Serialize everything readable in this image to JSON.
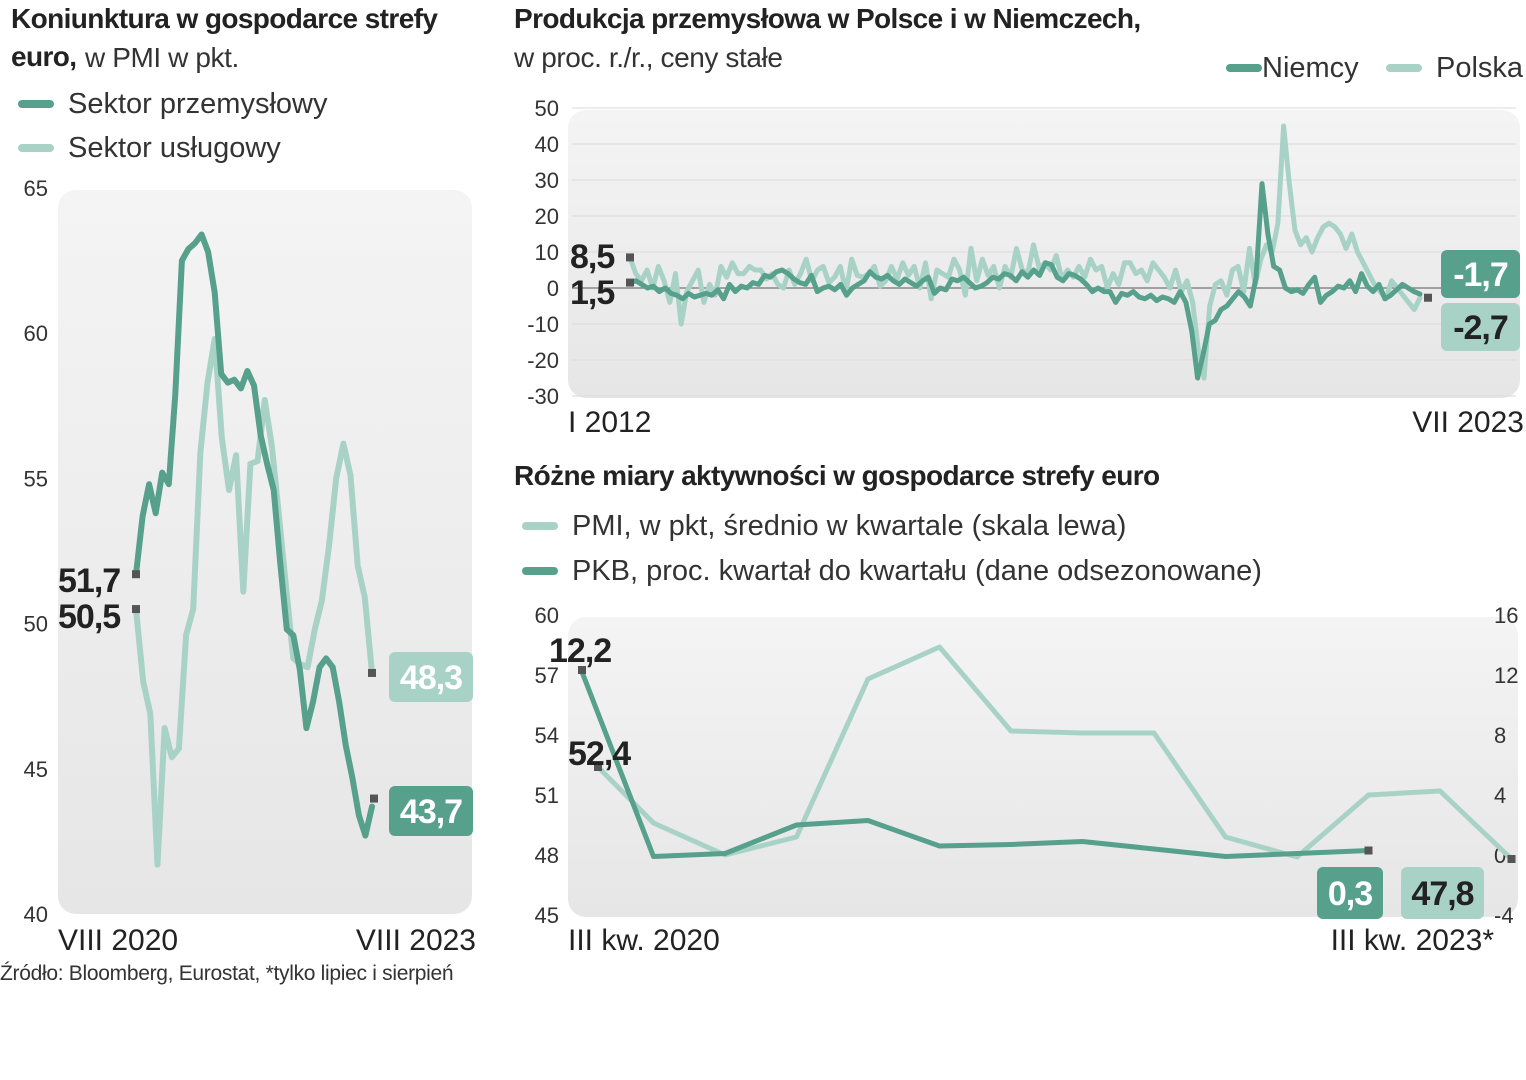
{
  "colors": {
    "dark": "#56a08c",
    "light": "#a9d2c6",
    "panel": "#e9e9e9",
    "marker": "#555555"
  },
  "chart_data": [
    {
      "type": "line",
      "title": "Koniunktura w gospodarce strefy euro,",
      "subtitle": "w PMI w pkt.",
      "legend": [
        "Sektor przemysłowy",
        "Sektor usługowy"
      ],
      "ylim": [
        40,
        65
      ],
      "yticks": [
        "65",
        "60",
        "55",
        "50",
        "45",
        "40"
      ],
      "xlabels": [
        "VIII 2020",
        "VIII 2023"
      ],
      "series": [
        {
          "name": "Sektor przemysłowy",
          "color": "dark",
          "values": [
            51.7,
            53.7,
            54.8,
            53.8,
            55.2,
            54.8,
            57.9,
            62.5,
            62.9,
            63.1,
            63.4,
            62.8,
            61.4,
            58.6,
            58.3,
            58.4,
            58.1,
            58.7,
            58.2,
            56.5,
            55.5,
            54.6,
            52.1,
            49.8,
            49.6,
            48.4,
            46.4,
            47.3,
            48.5,
            48.8,
            48.5,
            47.3,
            45.8,
            44.7,
            43.4,
            42.7,
            43.7
          ],
          "start_label": "51,7",
          "end_label": "43,7"
        },
        {
          "name": "Sektor usługowy",
          "color": "light",
          "values": [
            50.5,
            48.0,
            46.9,
            41.7,
            46.4,
            45.4,
            45.7,
            49.6,
            50.5,
            55.9,
            58.3,
            59.8,
            56.4,
            54.6,
            55.8,
            51.1,
            55.5,
            55.6,
            57.7,
            56.1,
            53.7,
            51.2,
            48.8,
            48.6,
            48.5,
            49.8,
            50.8,
            52.7,
            55.0,
            56.2,
            55.1,
            52.0,
            50.9,
            48.3
          ],
          "start_label": "50,5",
          "end_label": "48,3"
        }
      ]
    },
    {
      "type": "line",
      "title": "Produkcja przemysłowa w Polsce i w Niemczech,",
      "subtitle": "w proc. r./r., ceny stałe",
      "legend": [
        "Niemcy",
        "Polska"
      ],
      "ylim": [
        -30,
        50
      ],
      "yticks": [
        "50",
        "40",
        "30",
        "20",
        "10",
        "0",
        "-10",
        "-20",
        "-30"
      ],
      "xlabels": [
        "I 2012",
        "VII 2023"
      ],
      "series": [
        {
          "name": "Niemcy",
          "color": "dark",
          "values": [
            1.5,
            2.0,
            1.0,
            0.0,
            0.5,
            -1.0,
            0.0,
            -1.5,
            -2.0,
            -3.0,
            -1.5,
            -2.5,
            -2.0,
            -1.5,
            -2.0,
            -0.5,
            -3.0,
            1.0,
            -1.0,
            0.5,
            0.0,
            1.5,
            1.0,
            3.5,
            3.0,
            4.5,
            5.0,
            4.0,
            2.5,
            1.5,
            1.0,
            3.5,
            -1.0,
            0.0,
            0.5,
            -0.5,
            1.0,
            -2.0,
            0.0,
            1.0,
            2.0,
            4.5,
            3.0,
            2.5,
            3.5,
            2.0,
            1.0,
            2.5,
            1.5,
            0.5,
            2.0,
            3.0,
            -1.5,
            0.0,
            -0.5,
            2.5,
            2.0,
            3.0,
            1.5,
            0.0,
            0.5,
            1.5,
            3.0,
            2.5,
            4.0,
            3.5,
            2.0,
            4.5,
            3.0,
            5.0,
            3.5,
            7.0,
            6.5,
            3.0,
            2.0,
            4.0,
            3.5,
            2.5,
            1.0,
            -1.0,
            0.0,
            -1.0,
            -1.0,
            -4.0,
            -1.5,
            -2.0,
            -1.0,
            -2.5,
            -3.0,
            -2.0,
            -3.5,
            -2.5,
            -3.0,
            -4.0,
            -1.0,
            -4.0,
            -12.0,
            -25.0,
            -18.0,
            -10.0,
            -9.0,
            -6.0,
            -5.0,
            -3.0,
            -1.0,
            -2.5,
            -5.0,
            3.0,
            29.0,
            15.0,
            6.0,
            5.0,
            0.0,
            -1.0,
            -0.5,
            -1.5,
            1.0,
            3.0,
            -4.0,
            -2.0,
            -1.0,
            0.5,
            0.0,
            2.0,
            -1.0,
            4.0,
            0.5,
            -1.0,
            1.0,
            -3.0,
            -2.0,
            -0.5,
            1.0,
            0.0,
            -1.0,
            -1.7
          ],
          "start_label": "1,5",
          "end_label": "-1,7"
        },
        {
          "name": "Polska",
          "color": "light",
          "values": [
            8.5,
            4.0,
            2.0,
            5.0,
            0.0,
            6.0,
            2.0,
            -4.0,
            4.0,
            -10.0,
            -1.0,
            2.0,
            5.0,
            -4.0,
            1.0,
            -2.0,
            6.0,
            3.0,
            7.0,
            4.0,
            4.0,
            6.0,
            5.0,
            5.0,
            2.5,
            4.0,
            1.0,
            0.0,
            5.0,
            1.0,
            4.0,
            8.0,
            2.0,
            5.0,
            6.0,
            1.5,
            3.0,
            6.0,
            -1.0,
            8.0,
            3.5,
            3.0,
            4.0,
            6.0,
            0.5,
            2.0,
            6.0,
            2.5,
            7.0,
            3.5,
            6.0,
            0.0,
            7.0,
            -3.0,
            5.0,
            4.0,
            3.0,
            8.0,
            5.0,
            -2.0,
            11.0,
            2.0,
            8.0,
            3.5,
            6.0,
            0.0,
            6.0,
            3.0,
            11.0,
            5.0,
            4.0,
            12.0,
            5.5,
            7.0,
            5.0,
            9.0,
            2.5,
            5.0,
            3.0,
            6.0,
            3.0,
            8.0,
            5.0,
            6.0,
            0.0,
            4.0,
            1.0,
            7.0,
            7.0,
            4.0,
            5.0,
            2.0,
            7.0,
            5.0,
            3.0,
            0.0,
            5.0,
            -1.0,
            2.0,
            -4.0,
            -17.0,
            -25.0,
            -5.0,
            1.0,
            2.0,
            -2.0,
            5.0,
            6.0,
            -1.0,
            11.0,
            1.0,
            8.0,
            12.0,
            10.0,
            18.0,
            45.0,
            29.0,
            16.0,
            12.0,
            14.0,
            10.0,
            14.0,
            17.0,
            18.0,
            17.0,
            15.0,
            11.0,
            15.0,
            10.0,
            7.0,
            4.0,
            1.0,
            -1.0,
            -3.0,
            2.0,
            0.0,
            -2.0,
            -4.0,
            -6.0,
            -2.7
          ],
          "start_label": "8,5",
          "end_label": "-2,7"
        }
      ]
    },
    {
      "type": "line",
      "title": "Różne miary aktywności w gospodarce strefy euro",
      "legend": [
        "PMI, w pkt, średnio w kwartale (skala lewa)",
        "PKB, proc. kwartał do kwartału (dane odsezonowane)"
      ],
      "ylim_left": [
        45,
        60
      ],
      "ylim_right": [
        -4,
        16
      ],
      "yticks_left": [
        "60",
        "57",
        "54",
        "51",
        "48",
        "45"
      ],
      "yticks_right": [
        "16",
        "12",
        "8",
        "4",
        "0",
        "-4"
      ],
      "xlabels": [
        "III kw. 2020",
        "III kw. 2023*"
      ],
      "series": [
        {
          "name": "PMI, w pkt, średnio w kwartale (skala lewa)",
          "color": "light",
          "axis": "left",
          "values": [
            52.4,
            49.6,
            48.0,
            48.9,
            56.8,
            58.4,
            54.2,
            54.1,
            54.1,
            48.9,
            47.9,
            51.0,
            51.2,
            47.8
          ],
          "start_label": "52,4",
          "end_label": "47,8"
        },
        {
          "name": "PKB, proc. kwartał do kwartału (dane odsezonowane)",
          "color": "dark",
          "axis": "right",
          "values": [
            12.2,
            -0.1,
            0.1,
            2.0,
            2.3,
            0.6,
            0.7,
            0.9,
            0.4,
            -0.1,
            0.1,
            0.3
          ],
          "start_label": "12,2",
          "end_label": "0,3"
        }
      ]
    }
  ],
  "footer": {
    "source": "Źródło: Bloomberg, Eurostat, *tylko lipiec i sierpień"
  }
}
